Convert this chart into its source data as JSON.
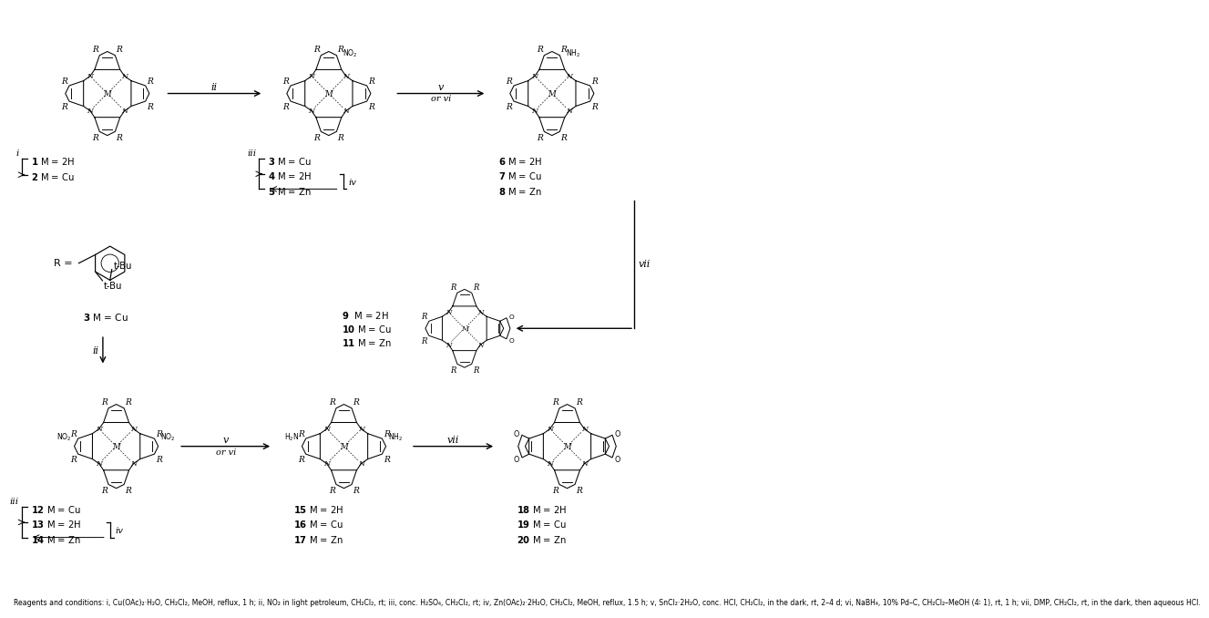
{
  "background_color": "#ffffff",
  "fig_width": 7.39,
  "fig_height": 6.72,
  "footer": "Reagents and conditions: i, Cu(OAc)₂·H₂O, CH₂Cl₂, MeOH, reflux, 1 h; ii, NO₂ in light petroleum, CH₂Cl₂, rt; iii, conc. H₂SO₄, CH₂Cl₂, rt; iv, Zn(OAc)₂·2H₂O, CH₂Cl₂, MeOH, reflux, 1.5 h; v, SnCl₂·2H₂O, conc. HCl, CH₂Cl₂, in the dark, rt, 2–4 d; vi, NaBH₄, 10% Pd–C, CH₂Cl₂–MeOH (4∶ 1), rt, 1 h; vii, DMP, CH₂Cl₂, rt, in the dark, then aqueous HCl."
}
